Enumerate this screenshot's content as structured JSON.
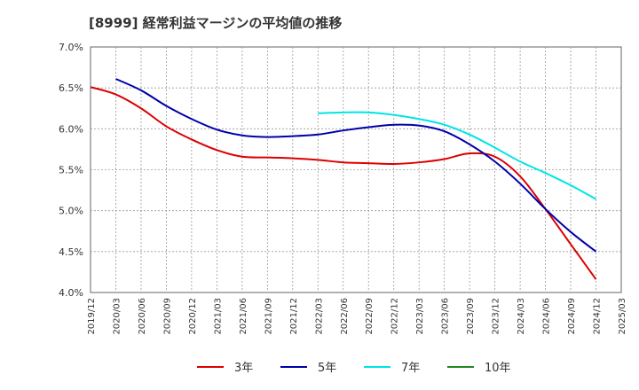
{
  "chart_data": {
    "type": "line",
    "title": "[8999]  経常利益マージンの平均値の推移",
    "xlabel": "",
    "ylabel": "",
    "grid": true,
    "legend_position": "bottom",
    "x_ticks": [
      "2019/12",
      "2020/03",
      "2020/06",
      "2020/09",
      "2020/12",
      "2021/03",
      "2021/06",
      "2021/09",
      "2021/12",
      "2022/03",
      "2022/06",
      "2022/09",
      "2022/12",
      "2023/03",
      "2023/06",
      "2023/09",
      "2023/12",
      "2024/03",
      "2024/06",
      "2024/09",
      "2024/12",
      "2025/03"
    ],
    "y_ticks": [
      "7.0%",
      "6.5%",
      "6.0%",
      "5.5%",
      "5.0%",
      "4.5%",
      "4.0%"
    ],
    "ylim": [
      4.0,
      7.0
    ],
    "series": [
      {
        "name": "3年",
        "color": "#dd0000",
        "points": [
          [
            "2019/12",
            6.51
          ],
          [
            "2020/03",
            6.42
          ],
          [
            "2020/06",
            6.25
          ],
          [
            "2020/09",
            6.03
          ],
          [
            "2020/12",
            5.87
          ],
          [
            "2021/03",
            5.74
          ],
          [
            "2021/06",
            5.66
          ],
          [
            "2021/09",
            5.65
          ],
          [
            "2021/12",
            5.64
          ],
          [
            "2022/03",
            5.62
          ],
          [
            "2022/06",
            5.59
          ],
          [
            "2022/09",
            5.58
          ],
          [
            "2022/12",
            5.57
          ],
          [
            "2023/03",
            5.59
          ],
          [
            "2023/06",
            5.63
          ],
          [
            "2023/09",
            5.7
          ],
          [
            "2023/12",
            5.66
          ],
          [
            "2024/03",
            5.42
          ],
          [
            "2024/06",
            5.02
          ],
          [
            "2024/09",
            4.59
          ],
          [
            "2024/12",
            4.16
          ]
        ]
      },
      {
        "name": "5年",
        "color": "#0000aa",
        "points": [
          [
            "2020/03",
            6.61
          ],
          [
            "2020/06",
            6.47
          ],
          [
            "2020/09",
            6.28
          ],
          [
            "2020/12",
            6.12
          ],
          [
            "2021/03",
            5.99
          ],
          [
            "2021/06",
            5.92
          ],
          [
            "2021/09",
            5.9
          ],
          [
            "2021/12",
            5.91
          ],
          [
            "2022/03",
            5.93
          ],
          [
            "2022/06",
            5.98
          ],
          [
            "2022/09",
            6.02
          ],
          [
            "2022/12",
            6.05
          ],
          [
            "2023/03",
            6.04
          ],
          [
            "2023/06",
            5.97
          ],
          [
            "2023/09",
            5.81
          ],
          [
            "2023/12",
            5.6
          ],
          [
            "2024/03",
            5.33
          ],
          [
            "2024/06",
            5.02
          ],
          [
            "2024/09",
            4.74
          ],
          [
            "2024/12",
            4.5
          ]
        ]
      },
      {
        "name": "7年",
        "color": "#00e5e5",
        "points": [
          [
            "2022/03",
            6.19
          ],
          [
            "2022/06",
            6.2
          ],
          [
            "2022/09",
            6.2
          ],
          [
            "2022/12",
            6.17
          ],
          [
            "2023/03",
            6.12
          ],
          [
            "2023/06",
            6.05
          ],
          [
            "2023/09",
            5.93
          ],
          [
            "2023/12",
            5.77
          ],
          [
            "2024/03",
            5.6
          ],
          [
            "2024/06",
            5.46
          ],
          [
            "2024/09",
            5.31
          ],
          [
            "2024/12",
            5.14
          ]
        ]
      },
      {
        "name": "10年",
        "color": "#228822",
        "points": []
      }
    ]
  }
}
